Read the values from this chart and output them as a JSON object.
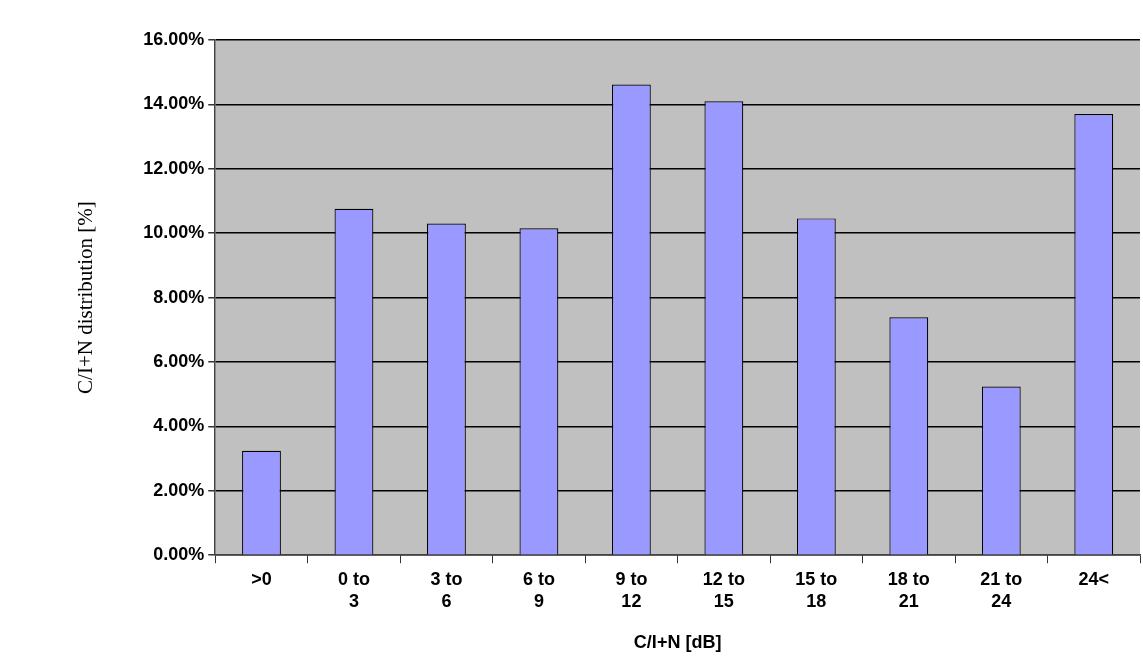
{
  "chart_data": {
    "type": "bar",
    "xlabel": "C/I+N [dB]",
    "ylabel": "C/I+N distribution [%]",
    "categories": [
      ">0",
      "0 to 3",
      "3 to 6",
      "6 to 9",
      "9 to 12",
      "12 to 15",
      "15 to 18",
      "18 to 21",
      "21 to 24",
      "24<"
    ],
    "values": [
      3.24,
      10.76,
      10.3,
      10.15,
      14.62,
      14.1,
      10.46,
      7.39,
      5.24,
      13.7
    ],
    "color": "#9999ff",
    "ylim": [
      0,
      16
    ],
    "yticks": [
      {
        "value": 0,
        "label": "0.00%"
      },
      {
        "value": 2,
        "label": "2.00%"
      },
      {
        "value": 4,
        "label": "4.00%"
      },
      {
        "value": 6,
        "label": "6.00%"
      },
      {
        "value": 8,
        "label": "8.00%"
      },
      {
        "value": 10,
        "label": "10.00%"
      },
      {
        "value": 12,
        "label": "12.00%"
      },
      {
        "value": 14,
        "label": "14.00%"
      },
      {
        "value": 16,
        "label": "16.00%"
      }
    ],
    "grid": "y",
    "legend": false
  }
}
